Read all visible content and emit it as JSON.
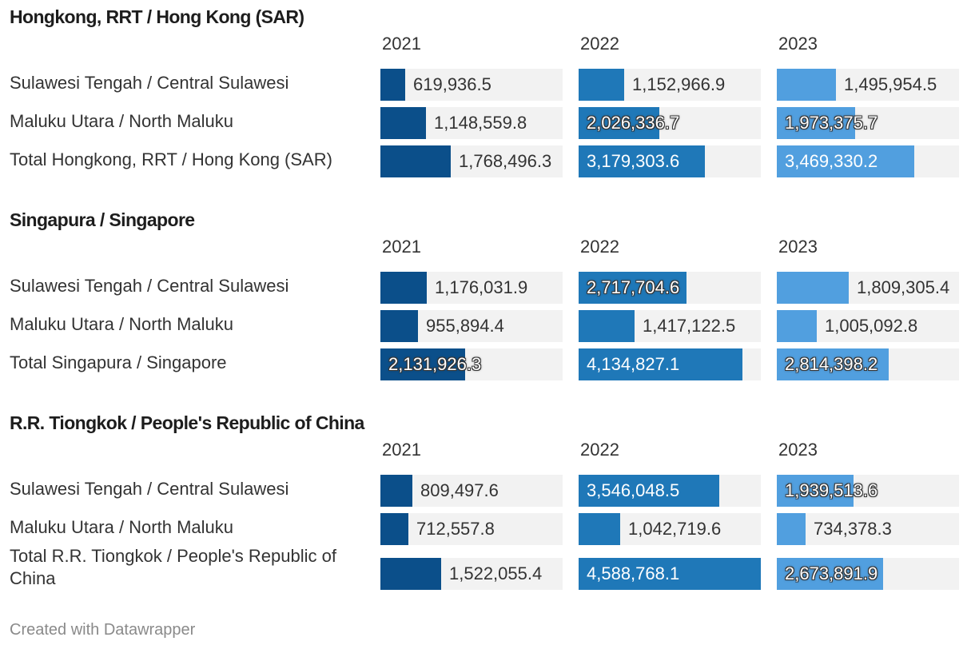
{
  "chart_data": {
    "type": "bar",
    "columns": [
      "2021",
      "2022",
      "2023"
    ],
    "colors": [
      "#0b4f8a",
      "#1f78b8",
      "#519fdf"
    ],
    "value_max": 4588768.1,
    "groups": [
      {
        "title": "Hongkong, RRT / Hong Kong (SAR)",
        "rows": [
          {
            "label": "Sulawesi Tengah / Central Sulawesi",
            "values": [
              619936.5,
              1152966.9,
              1495954.5
            ],
            "labels": [
              "619,936.5",
              "1,152,966.9",
              "1,495,954.5"
            ]
          },
          {
            "label": "Maluku Utara / North Maluku",
            "values": [
              1148559.8,
              2026336.7,
              1973375.7
            ],
            "labels": [
              "1,148,559.8",
              "2,026,336.7",
              "1,973,375.7"
            ]
          },
          {
            "label": "Total Hongkong, RRT / Hong Kong (SAR)",
            "values": [
              1768496.3,
              3179303.6,
              3469330.2
            ],
            "labels": [
              "1,768,496.3",
              "3,179,303.6",
              "3,469,330.2"
            ]
          }
        ]
      },
      {
        "title": "Singapura / Singapore",
        "rows": [
          {
            "label": "Sulawesi Tengah / Central Sulawesi",
            "values": [
              1176031.9,
              2717704.6,
              1809305.4
            ],
            "labels": [
              "1,176,031.9",
              "2,717,704.6",
              "1,809,305.4"
            ]
          },
          {
            "label": "Maluku Utara / North Maluku",
            "values": [
              955894.4,
              1417122.5,
              1005092.8
            ],
            "labels": [
              "955,894.4",
              "1,417,122.5",
              "1,005,092.8"
            ]
          },
          {
            "label": "Total Singapura / Singapore",
            "values": [
              2131926.3,
              4134827.1,
              2814398.2
            ],
            "labels": [
              "2,131,926.3",
              "4,134,827.1",
              "2,814,398.2"
            ]
          }
        ]
      },
      {
        "title": "R.R. Tiongkok / People's Republic of China",
        "rows": [
          {
            "label": "Sulawesi Tengah / Central Sulawesi",
            "values": [
              809497.6,
              3546048.5,
              1939513.6
            ],
            "labels": [
              "809,497.6",
              "3,546,048.5",
              "1,939,513.6"
            ]
          },
          {
            "label": "Maluku Utara / North Maluku",
            "values": [
              712557.8,
              1042719.6,
              734378.3
            ],
            "labels": [
              "712,557.8",
              "1,042,719.6",
              "734,378.3"
            ]
          },
          {
            "label": "Total R.R. Tiongkok / People's Republic of China",
            "values": [
              1522055.4,
              4588768.1,
              2673891.9
            ],
            "labels": [
              "1,522,055.4",
              "4,588,768.1",
              "2,673,891.9"
            ]
          }
        ]
      }
    ]
  },
  "footer": "Created with Datawrapper"
}
